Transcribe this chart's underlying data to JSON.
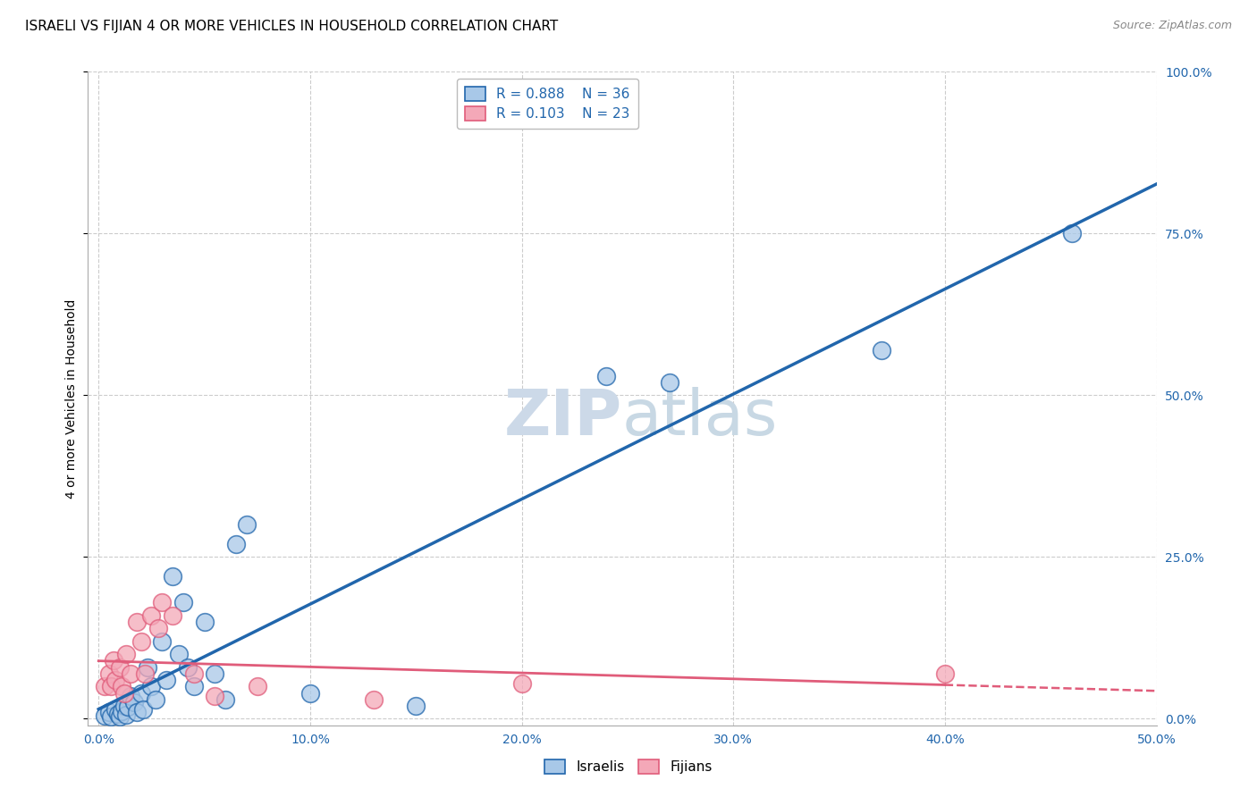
{
  "title": "ISRAELI VS FIJIAN 4 OR MORE VEHICLES IN HOUSEHOLD CORRELATION CHART",
  "source": "Source: ZipAtlas.com",
  "xlabel_tick_vals": [
    0,
    10,
    20,
    30,
    40,
    50
  ],
  "ylabel_tick_vals": [
    0,
    25,
    50,
    75,
    100
  ],
  "xlim": [
    -0.5,
    50
  ],
  "ylim": [
    -1,
    100
  ],
  "ylabel": "4 or more Vehicles in Household",
  "israeli_R": 0.888,
  "israeli_N": 36,
  "fijian_R": 0.103,
  "fijian_N": 23,
  "israeli_color": "#a8c8e8",
  "fijian_color": "#f4a8b8",
  "israeli_line_color": "#2166ac",
  "fijian_line_color": "#e05c7a",
  "israeli_scatter": [
    [
      0.3,
      0.5
    ],
    [
      0.5,
      1.0
    ],
    [
      0.6,
      0.3
    ],
    [
      0.8,
      1.5
    ],
    [
      0.9,
      0.8
    ],
    [
      1.0,
      0.4
    ],
    [
      1.1,
      1.2
    ],
    [
      1.2,
      2.0
    ],
    [
      1.3,
      0.6
    ],
    [
      1.4,
      1.8
    ],
    [
      1.5,
      3.5
    ],
    [
      1.7,
      2.5
    ],
    [
      1.8,
      1.0
    ],
    [
      2.0,
      4.0
    ],
    [
      2.1,
      1.5
    ],
    [
      2.3,
      8.0
    ],
    [
      2.5,
      5.0
    ],
    [
      2.7,
      3.0
    ],
    [
      3.0,
      12.0
    ],
    [
      3.2,
      6.0
    ],
    [
      3.5,
      22.0
    ],
    [
      3.8,
      10.0
    ],
    [
      4.0,
      18.0
    ],
    [
      4.2,
      8.0
    ],
    [
      4.5,
      5.0
    ],
    [
      5.0,
      15.0
    ],
    [
      5.5,
      7.0
    ],
    [
      6.0,
      3.0
    ],
    [
      6.5,
      27.0
    ],
    [
      7.0,
      30.0
    ],
    [
      10.0,
      4.0
    ],
    [
      15.0,
      2.0
    ],
    [
      24.0,
      53.0
    ],
    [
      27.0,
      52.0
    ],
    [
      37.0,
      57.0
    ],
    [
      46.0,
      75.0
    ]
  ],
  "fijian_scatter": [
    [
      0.3,
      5.0
    ],
    [
      0.5,
      7.0
    ],
    [
      0.6,
      5.0
    ],
    [
      0.7,
      9.0
    ],
    [
      0.8,
      6.0
    ],
    [
      1.0,
      8.0
    ],
    [
      1.1,
      5.0
    ],
    [
      1.2,
      4.0
    ],
    [
      1.3,
      10.0
    ],
    [
      1.5,
      7.0
    ],
    [
      1.8,
      15.0
    ],
    [
      2.0,
      12.0
    ],
    [
      2.2,
      7.0
    ],
    [
      2.5,
      16.0
    ],
    [
      2.8,
      14.0
    ],
    [
      3.0,
      18.0
    ],
    [
      3.5,
      16.0
    ],
    [
      4.5,
      7.0
    ],
    [
      5.5,
      3.5
    ],
    [
      7.5,
      5.0
    ],
    [
      13.0,
      3.0
    ],
    [
      20.0,
      5.5
    ],
    [
      40.0,
      7.0
    ]
  ],
  "background_color": "#ffffff",
  "grid_color": "#cccccc",
  "title_fontsize": 11,
  "axis_label_fontsize": 10,
  "tick_fontsize": 10,
  "legend_fontsize": 11,
  "source_fontsize": 9,
  "watermark_color": "#ccd9e8",
  "watermark_fontsize": 52
}
